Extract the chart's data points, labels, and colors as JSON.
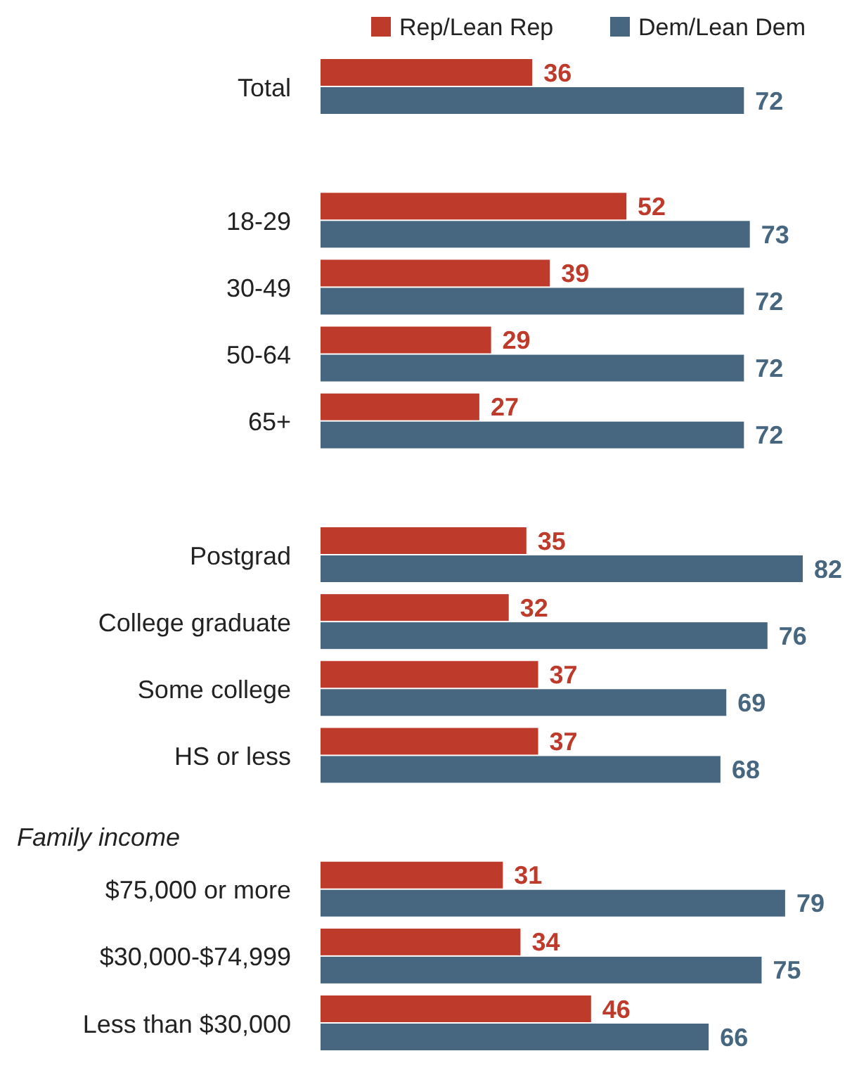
{
  "chart_data": {
    "type": "bar",
    "orientation": "horizontal",
    "categories": [
      "Total",
      null,
      "18-29",
      "30-49",
      "50-64",
      "65+",
      null,
      "Postgrad",
      "College graduate",
      "Some college",
      "HS or less",
      null,
      "$75,000 or more",
      "$30,000-$74,999",
      "Less than $30,000"
    ],
    "series": [
      {
        "name": "Rep/Lean Rep",
        "color": "#be3a2b",
        "values": [
          36,
          null,
          52,
          39,
          29,
          27,
          null,
          35,
          32,
          37,
          37,
          null,
          31,
          34,
          46
        ]
      },
      {
        "name": "Dem/Lean Dem",
        "color": "#46677f",
        "values": [
          72,
          null,
          73,
          72,
          72,
          72,
          null,
          82,
          76,
          69,
          68,
          null,
          79,
          75,
          66
        ]
      }
    ],
    "annotations": [
      "Family income"
    ],
    "data_labels": true,
    "legend": "top right"
  }
}
